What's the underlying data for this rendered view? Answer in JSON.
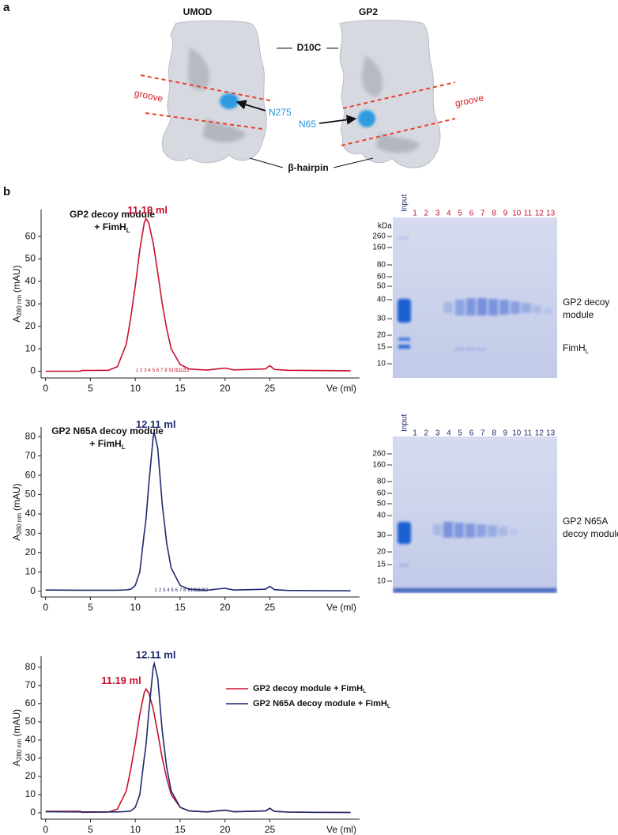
{
  "panel_a": {
    "label": "a",
    "left_title": "UMOD",
    "right_title": "GP2",
    "center_label": "D10C",
    "groove_left": "groove",
    "groove_right": "groove",
    "site_left": "N275",
    "site_right": "N65",
    "hairpin": "β-hairpin"
  },
  "panel_b_label": "b",
  "chart_data": [
    {
      "type": "line",
      "title_lines": [
        "GP2 decoy module",
        "+ FimH"
      ],
      "title_subscript": "L",
      "ylabel": "A",
      "ylabel_subscript": "280 nm",
      "ylabel_unit": "(mAU)",
      "xlabel": "Ve (ml)",
      "x": [
        0,
        3.9,
        4,
        7,
        8,
        9,
        9.5,
        10,
        10.5,
        11,
        11.19,
        11.5,
        12,
        12.11,
        12.5,
        13,
        13.5,
        14,
        15,
        16,
        18,
        19.5,
        20,
        21,
        24.5,
        25,
        25.5,
        27,
        30,
        34
      ],
      "series": [
        {
          "color": "#c8102e",
          "values": [
            0,
            0,
            0.3,
            0.4,
            2,
            12,
            24,
            38,
            54,
            66,
            68,
            66,
            57,
            54,
            44,
            30,
            19,
            10,
            3,
            1,
            0.5,
            1.2,
            1.4,
            0.6,
            1,
            2.5,
            0.8,
            0.4,
            0.3,
            0.2
          ]
        }
      ],
      "annotations": [
        {
          "text": "11.19 ml",
          "color": "#c8102e"
        }
      ],
      "fractions": [
        1,
        2,
        3,
        4,
        5,
        6,
        7,
        8,
        9,
        10,
        11,
        12,
        13
      ],
      "fraction_color": "#c8102e",
      "xlim": [
        -0.5,
        35
      ],
      "xticks": [
        0,
        5,
        10,
        15,
        20,
        25
      ],
      "ylim": [
        -3,
        72
      ],
      "yticks": [
        0,
        10,
        20,
        30,
        40,
        50,
        60
      ]
    },
    {
      "type": "line",
      "title_lines": [
        "GP2 N65A decoy module",
        "+ FimH"
      ],
      "title_subscript": "L",
      "ylabel": "A",
      "ylabel_subscript": "280 nm",
      "ylabel_unit": "(mAU)",
      "xlabel": "Ve (ml)",
      "x": [
        0,
        3.9,
        4,
        7,
        8,
        9,
        9.5,
        10,
        10.5,
        11,
        11.19,
        11.5,
        12,
        12.11,
        12.5,
        13,
        13.5,
        14,
        15,
        16,
        18,
        19.5,
        20,
        21,
        24.5,
        25,
        25.5,
        27,
        30,
        34
      ],
      "series": [
        {
          "color": "#1f2a6e",
          "values": [
            0.6,
            0.5,
            0.5,
            0.5,
            0.5,
            0.7,
            1,
            3,
            10,
            30,
            37,
            55,
            80,
            82,
            74,
            45,
            25,
            12,
            3,
            1,
            0.5,
            1.3,
            1.5,
            0.6,
            1,
            2.5,
            0.8,
            0.4,
            0.3,
            0.2
          ]
        }
      ],
      "annotations": [
        {
          "text": "12.11 ml",
          "color": "#1f2a6e"
        }
      ],
      "fractions": [
        1,
        2,
        3,
        4,
        5,
        6,
        7,
        8,
        9,
        10,
        11,
        12,
        13
      ],
      "fraction_color": "#1f2a6e",
      "xlim": [
        -0.5,
        35
      ],
      "xticks": [
        0,
        5,
        10,
        15,
        20,
        25
      ],
      "ylim": [
        -3,
        85
      ],
      "yticks": [
        0,
        10,
        20,
        30,
        40,
        50,
        60,
        70,
        80
      ]
    },
    {
      "type": "line",
      "ylabel": "A",
      "ylabel_subscript": "280 nm",
      "ylabel_unit": "(mAU)",
      "xlabel": "Ve (ml)",
      "x": [
        0,
        3.9,
        4,
        7,
        8,
        9,
        9.5,
        10,
        10.5,
        11,
        11.19,
        11.5,
        12,
        12.11,
        12.5,
        13,
        13.5,
        14,
        15,
        16,
        18,
        19.5,
        20,
        21,
        24.5,
        25,
        25.5,
        27,
        30,
        34
      ],
      "series": [
        {
          "name": "GP2 decoy module + FimH",
          "name_subscript": "L",
          "color": "#c8102e",
          "values": [
            0.8,
            0.8,
            0.3,
            0.4,
            2,
            12,
            24,
            38,
            54,
            66,
            68,
            66,
            57,
            54,
            44,
            30,
            19,
            10,
            3,
            1,
            0.5,
            1.2,
            1.4,
            0.6,
            1,
            2.5,
            0.8,
            0.4,
            0.3,
            0.2
          ]
        },
        {
          "name": "GP2 N65A decoy module + FimH",
          "name_subscript": "L",
          "color": "#1f2a6e",
          "values": [
            0.6,
            0.5,
            0.5,
            0.5,
            0.5,
            0.7,
            1,
            3,
            10,
            30,
            37,
            55,
            80,
            82,
            74,
            45,
            25,
            12,
            3,
            1,
            0.5,
            1.3,
            1.5,
            0.6,
            1,
            2.5,
            0.8,
            0.4,
            0.3,
            0.2
          ]
        }
      ],
      "annotations": [
        {
          "text": "11.19 ml",
          "color": "#c8102e"
        },
        {
          "text": "12.11 ml",
          "color": "#1f2a6e"
        }
      ],
      "xlim": [
        -0.5,
        35
      ],
      "xticks": [
        0,
        5,
        10,
        15,
        20,
        25
      ],
      "ylim": [
        -3.5,
        86
      ],
      "yticks": [
        0,
        10,
        20,
        30,
        40,
        50,
        60,
        70,
        80
      ]
    }
  ],
  "gels": [
    {
      "lanes": [
        "Input",
        "1",
        "2",
        "3",
        "4",
        "5",
        "6",
        "7",
        "8",
        "9",
        "10",
        "11",
        "12",
        "13"
      ],
      "input_color": "#1f2a6e",
      "lane_color": "#c8102e",
      "ladder_unit": "kDa",
      "ladder": [
        260,
        160,
        80,
        60,
        50,
        40,
        30,
        20,
        15,
        10
      ],
      "band_labels": [
        {
          "lines": [
            "GP2 decoy",
            "module"
          ]
        },
        {
          "lines": [
            "FimH"
          ],
          "subscript": "L"
        }
      ]
    },
    {
      "lanes": [
        "Input",
        "1",
        "2",
        "3",
        "4",
        "5",
        "6",
        "7",
        "8",
        "9",
        "10",
        "11",
        "12",
        "13"
      ],
      "input_color": "#1f2a6e",
      "lane_color": "#1f2a6e",
      "ladder": [
        260,
        160,
        80,
        60,
        50,
        40,
        30,
        20,
        15,
        10
      ],
      "band_labels": [
        {
          "lines": [
            "GP2 N65A",
            "decoy module"
          ]
        }
      ]
    }
  ]
}
